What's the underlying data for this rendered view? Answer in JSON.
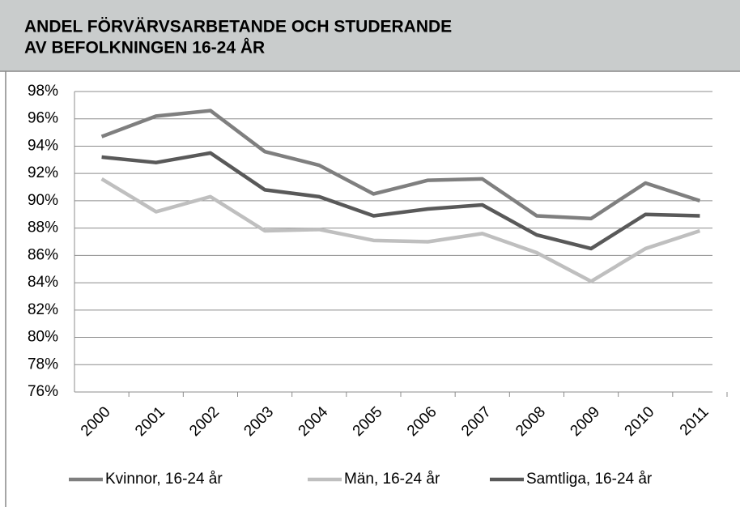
{
  "chart_data": {
    "type": "line",
    "title": [
      "ANDEL FÖRVÄRVSARBETANDE OCH STUDERANDE",
      "AV BEFOLKNINGEN 16-24 ÅR"
    ],
    "categories": [
      "2000",
      "2001",
      "2002",
      "2003",
      "2004",
      "2005",
      "2006",
      "2007",
      "2008",
      "2009",
      "2010",
      "2011"
    ],
    "series": [
      {
        "name": "Kvinnor, 16-24 år",
        "color": "#7f7f7f",
        "values": [
          94.7,
          96.2,
          96.6,
          93.6,
          92.6,
          90.5,
          91.5,
          91.6,
          88.9,
          88.7,
          91.3,
          90.0
        ]
      },
      {
        "name": "Män, 16-24 år",
        "color": "#bfbfbf",
        "values": [
          91.6,
          89.2,
          90.3,
          87.8,
          87.9,
          87.1,
          87.0,
          87.6,
          86.2,
          84.1,
          86.5,
          87.8
        ]
      },
      {
        "name": "Samtliga, 16-24 år",
        "color": "#595959",
        "values": [
          93.2,
          92.8,
          93.5,
          90.8,
          90.3,
          88.9,
          89.4,
          89.7,
          87.5,
          86.5,
          89.0,
          88.9
        ]
      }
    ],
    "ylim": [
      76,
      98
    ],
    "yticks": [
      {
        "value": 76,
        "label": "76%"
      },
      {
        "value": 78,
        "label": "78%"
      },
      {
        "value": 80,
        "label": "80%"
      },
      {
        "value": 82,
        "label": "82%"
      },
      {
        "value": 84,
        "label": "84%"
      },
      {
        "value": 86,
        "label": "86%"
      },
      {
        "value": 88,
        "label": "88%"
      },
      {
        "value": 90,
        "label": "90%"
      },
      {
        "value": 92,
        "label": "92%"
      },
      {
        "value": 94,
        "label": "94%"
      },
      {
        "value": 96,
        "label": "96%"
      },
      {
        "value": 98,
        "label": "98%"
      }
    ],
    "grid": true,
    "legend": "bottom"
  }
}
